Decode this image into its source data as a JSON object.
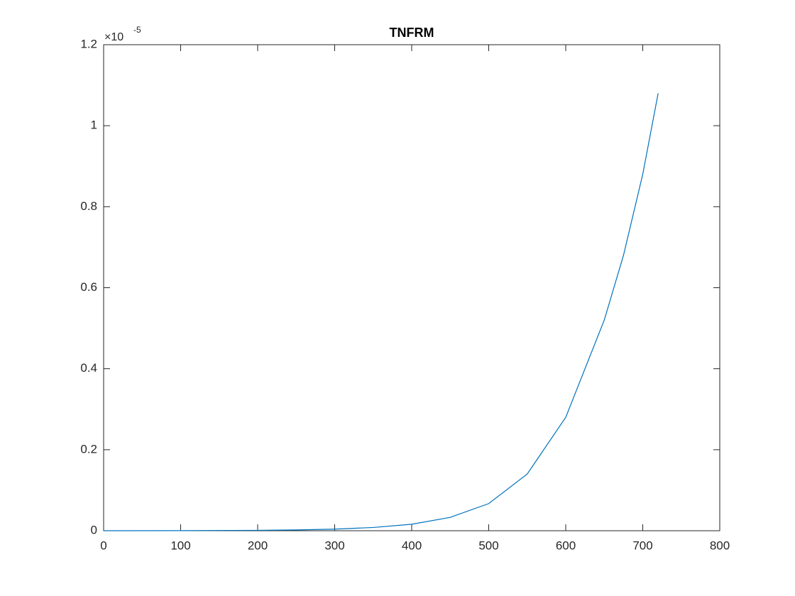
{
  "chart_data": {
    "type": "line",
    "title": "TNFRM",
    "x": [
      0,
      100,
      200,
      250,
      300,
      350,
      400,
      450,
      500,
      550,
      600,
      650,
      675,
      700,
      720
    ],
    "values": [
      0,
      0.0002,
      0.001,
      0.002,
      0.004,
      0.008,
      0.016,
      0.033,
      0.067,
      0.14,
      0.28,
      0.52,
      0.68,
      0.88,
      1.08
    ],
    "color": "#0072bd",
    "xlim": [
      0,
      800
    ],
    "xticks": [
      0,
      100,
      200,
      300,
      400,
      500,
      600,
      700,
      800
    ],
    "ylim": [
      0,
      1.2
    ],
    "yticks": [
      0,
      0.2,
      0.4,
      0.6,
      0.8,
      1,
      1.2
    ],
    "y_exponent_base": "×10",
    "y_exponent": "-5",
    "grid": false
  }
}
